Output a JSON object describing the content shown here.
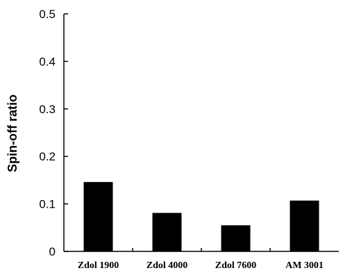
{
  "chart_data": {
    "type": "bar",
    "title": "",
    "xlabel": "",
    "ylabel": "Spin-off ratio",
    "categories": [
      "Zdol 1900",
      "Zdol 4000",
      "Zdol 7600",
      "AM 3001"
    ],
    "values": [
      0.146,
      0.081,
      0.055,
      0.107
    ],
    "ylim": [
      0,
      0.5
    ],
    "yticks": [
      0,
      0.1,
      0.2,
      0.3,
      0.4,
      0.5
    ],
    "ytick_labels": [
      "0",
      "0.1",
      "0.2",
      "0.3",
      "0.4",
      "0.5"
    ],
    "grid": false,
    "legend": "none",
    "bar_color": "#000000"
  }
}
